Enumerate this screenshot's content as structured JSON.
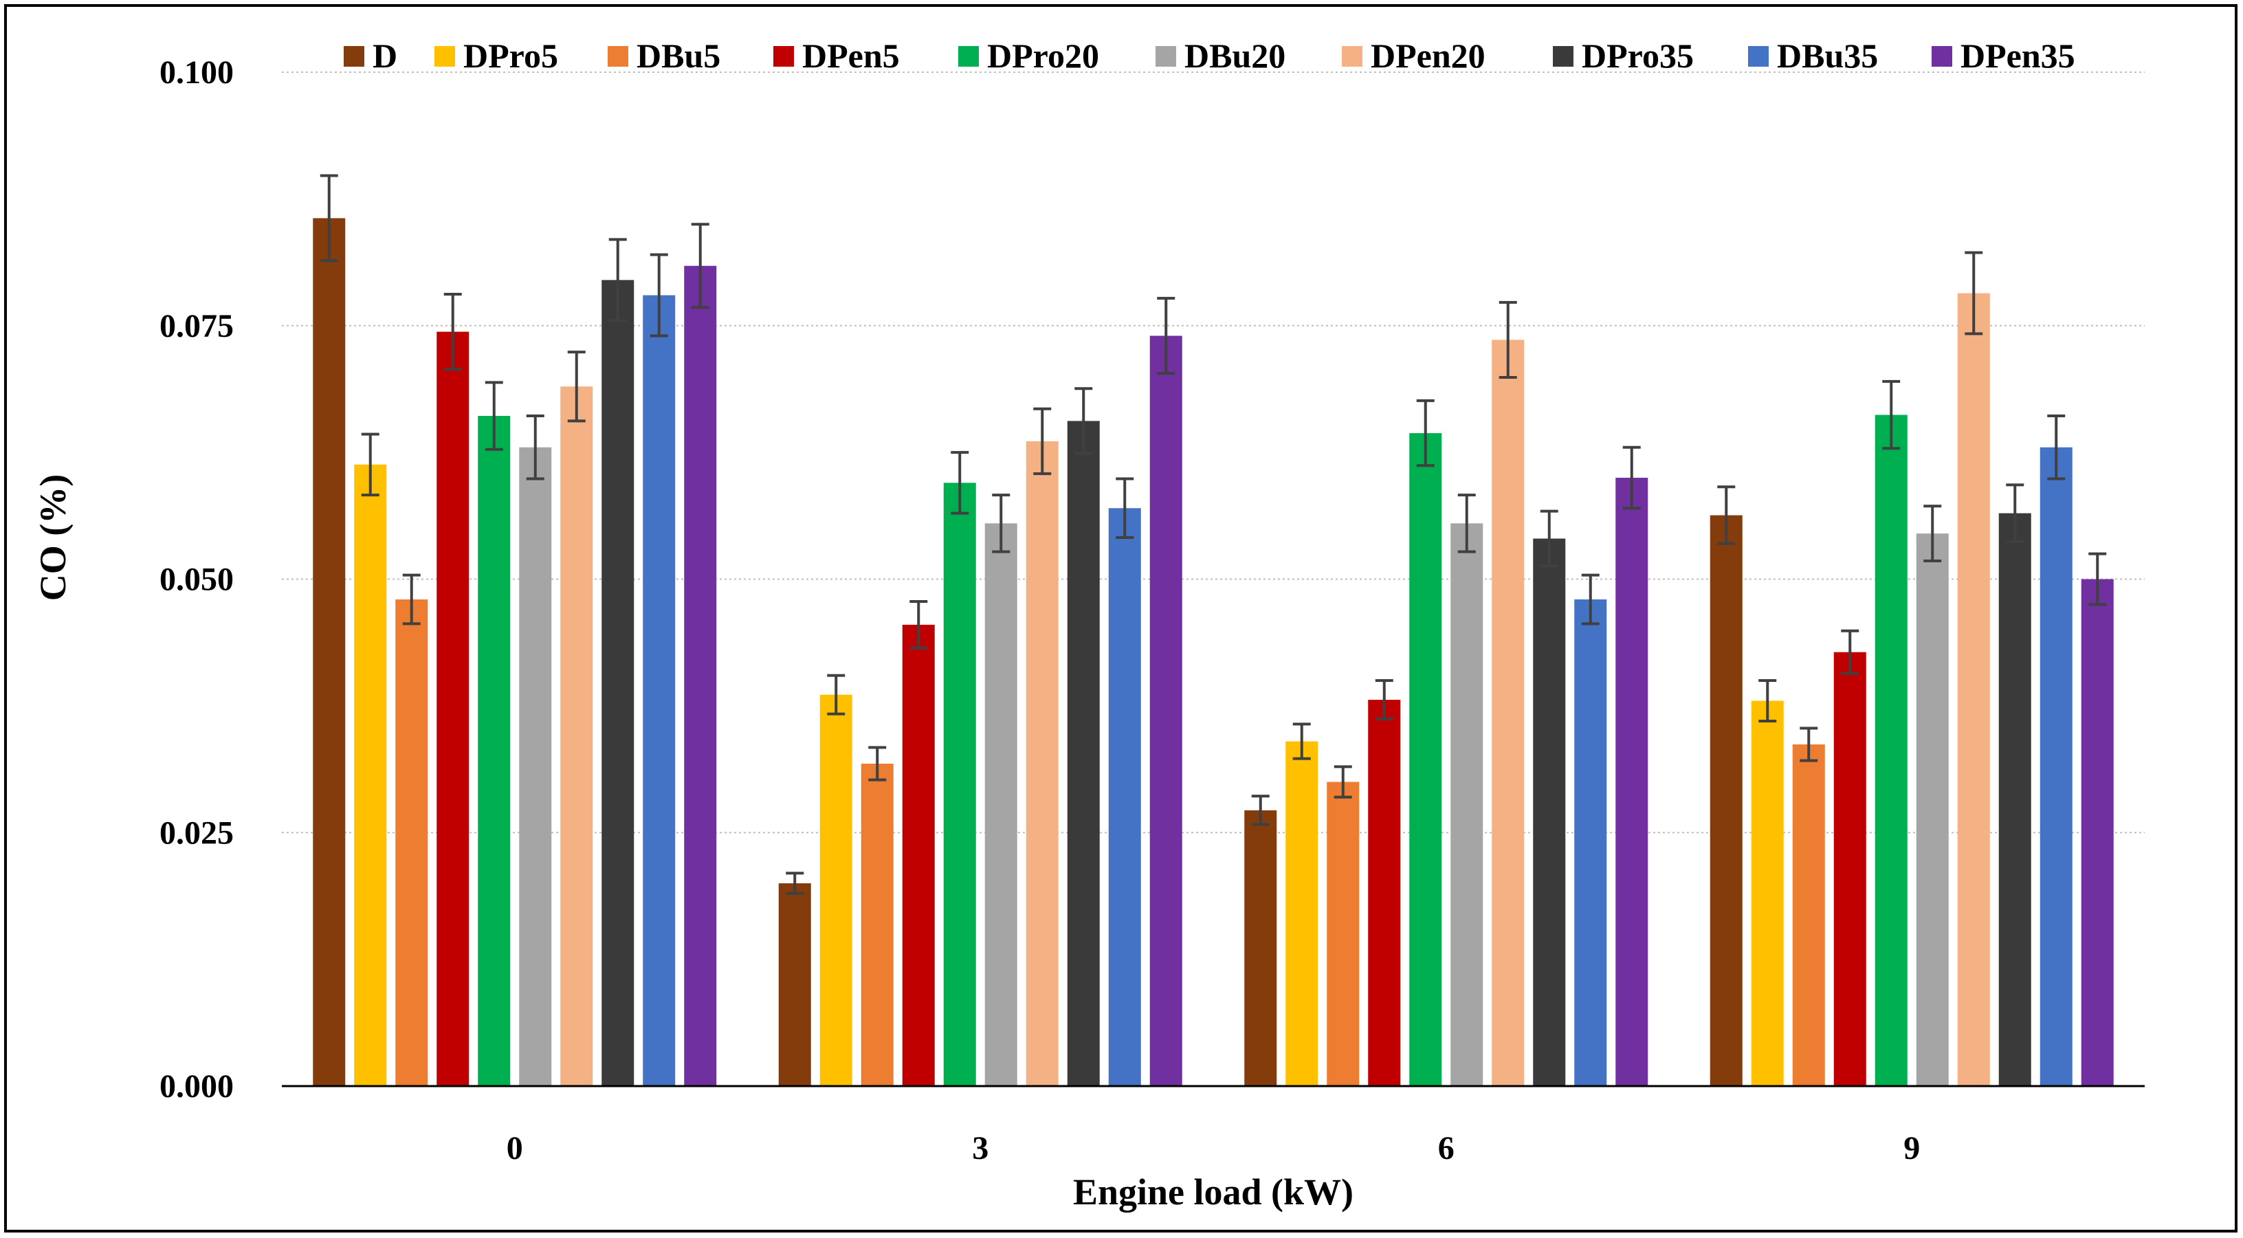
{
  "chart_data": {
    "type": "bar",
    "title": "",
    "xlabel": "Engine load (kW)",
    "ylabel": "CO (%)",
    "ylim": [
      0,
      0.1
    ],
    "yticks": [
      "0.000",
      "0.025",
      "0.050",
      "0.075",
      "0.100"
    ],
    "ytick_values": [
      0,
      0.025,
      0.05,
      0.075,
      0.1
    ],
    "grid": true,
    "legend_position": "top",
    "categories": [
      "0",
      "3",
      "6",
      "9"
    ],
    "series": [
      {
        "name": "D",
        "color": "#843C0C",
        "values": [
          0.0856,
          0.02,
          0.0272,
          0.0563
        ],
        "errors": [
          0.0042,
          0.001,
          0.0014,
          0.0028
        ]
      },
      {
        "name": "DPro5",
        "color": "#FFC000",
        "values": [
          0.0613,
          0.0386,
          0.034,
          0.038
        ],
        "errors": [
          0.003,
          0.0019,
          0.0017,
          0.002
        ]
      },
      {
        "name": "DBu5",
        "color": "#ED7D31",
        "values": [
          0.048,
          0.0318,
          0.03,
          0.0337
        ],
        "errors": [
          0.0024,
          0.0016,
          0.0015,
          0.0016
        ]
      },
      {
        "name": "DPen5",
        "color": "#C00000",
        "values": [
          0.0744,
          0.0455,
          0.0381,
          0.0428
        ],
        "errors": [
          0.0037,
          0.0023,
          0.0019,
          0.0021
        ]
      },
      {
        "name": "DPro20",
        "color": "#00B050",
        "values": [
          0.0661,
          0.0595,
          0.0644,
          0.0662
        ],
        "errors": [
          0.0033,
          0.003,
          0.0032,
          0.0033
        ]
      },
      {
        "name": "DBu20",
        "color": "#A5A5A5",
        "values": [
          0.063,
          0.0555,
          0.0555,
          0.0545
        ],
        "errors": [
          0.0031,
          0.0028,
          0.0028,
          0.0027
        ]
      },
      {
        "name": "DPen20",
        "color": "#F4B183",
        "values": [
          0.069,
          0.0636,
          0.0736,
          0.0782
        ],
        "errors": [
          0.0034,
          0.0032,
          0.0037,
          0.004
        ]
      },
      {
        "name": "DPro35",
        "color": "#3A3A3A",
        "values": [
          0.0795,
          0.0656,
          0.054,
          0.0565
        ],
        "errors": [
          0.004,
          0.0032,
          0.0027,
          0.0028
        ]
      },
      {
        "name": "DBu35",
        "color": "#4472C4",
        "values": [
          0.078,
          0.057,
          0.048,
          0.063
        ],
        "errors": [
          0.004,
          0.0029,
          0.0024,
          0.0031
        ]
      },
      {
        "name": "DPen35",
        "color": "#7030A0",
        "values": [
          0.0809,
          0.074,
          0.06,
          0.05
        ],
        "errors": [
          0.0041,
          0.0037,
          0.003,
          0.0025
        ]
      }
    ]
  }
}
